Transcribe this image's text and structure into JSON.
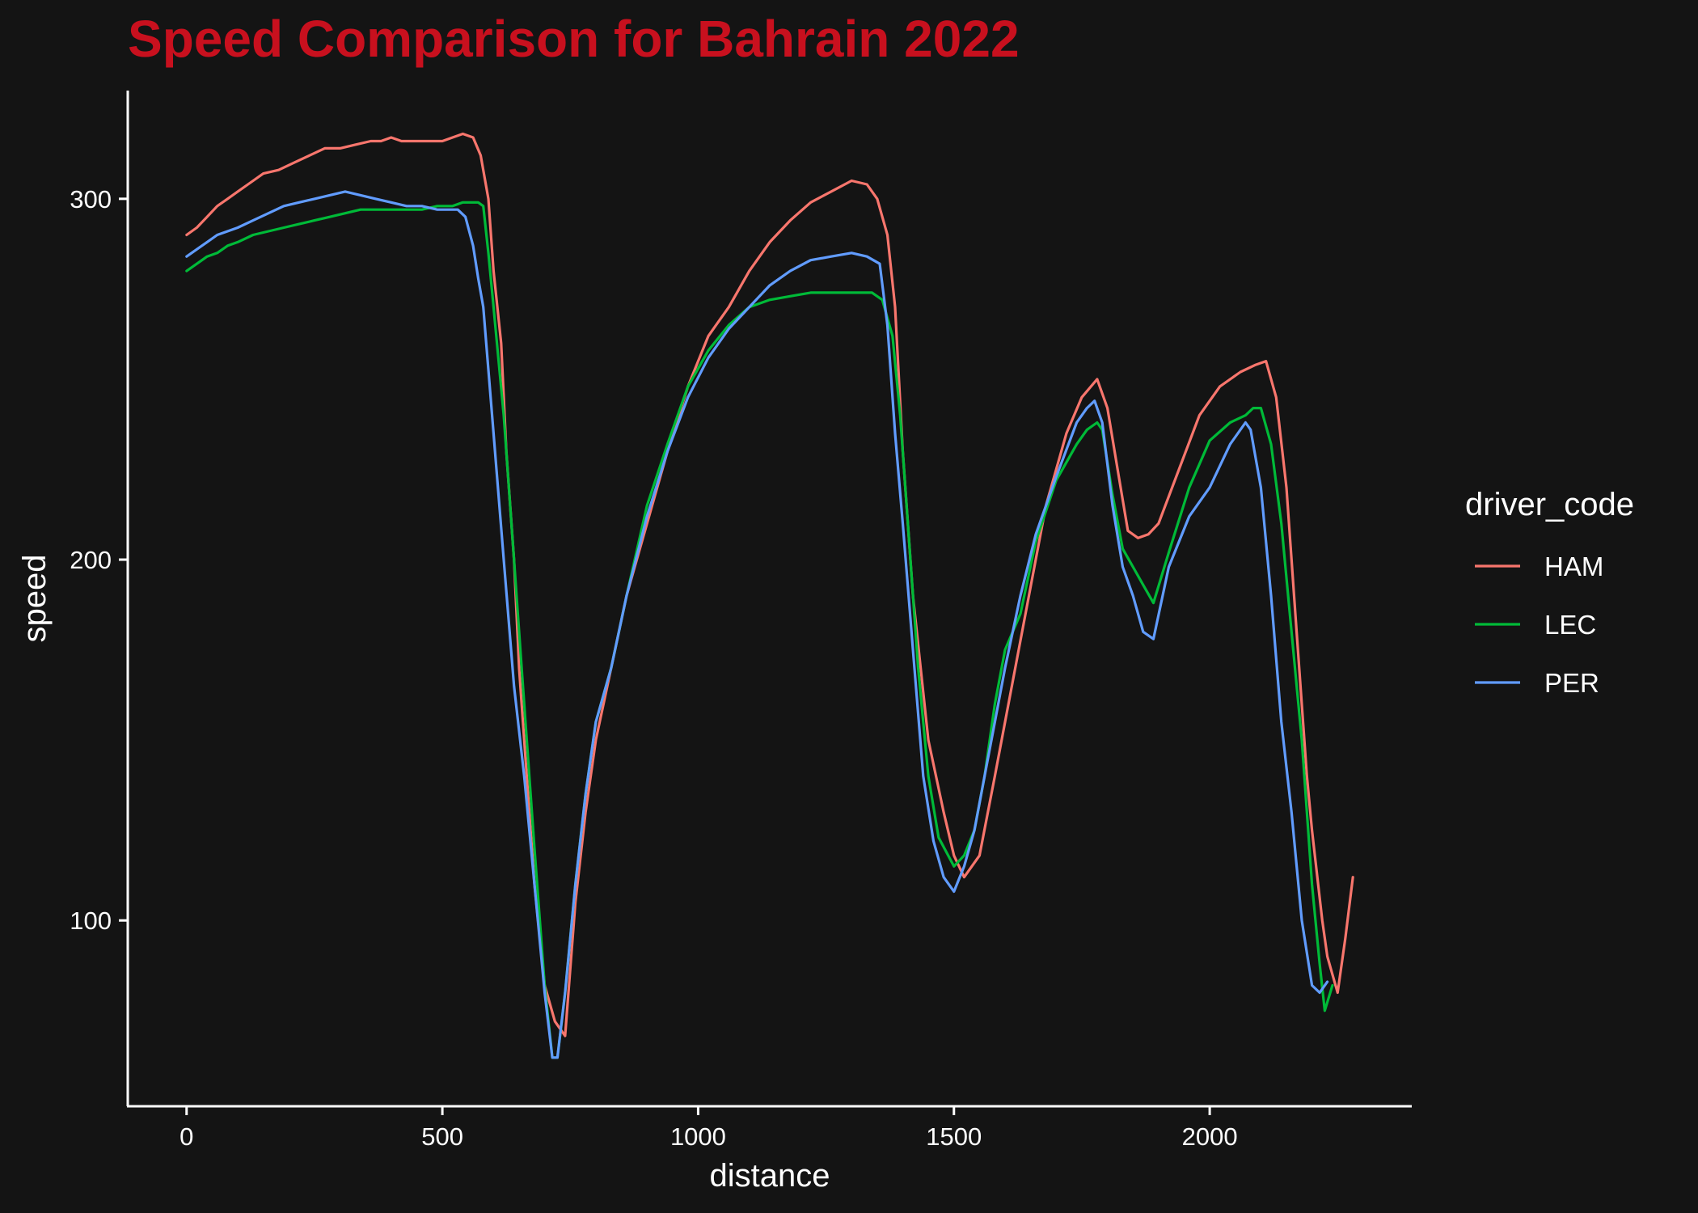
{
  "chart_data": {
    "type": "line",
    "title": "Speed Comparison for Bahrain 2022",
    "xlabel": "distance",
    "ylabel": "speed",
    "xlim": [
      -115,
      2395
    ],
    "ylim": [
      48.5,
      330
    ],
    "x_ticks": [
      0,
      500,
      1000,
      1500,
      2000
    ],
    "y_ticks": [
      100,
      200,
      300
    ],
    "grid": false,
    "legend_title": "driver_code",
    "legend_position": "right",
    "colors": {
      "background": "#141414",
      "title": "#C8101E",
      "axis": "#ffffff",
      "text": "#ffffff"
    },
    "series": [
      {
        "name": "HAM",
        "color": "#F8766D",
        "x": [
          0,
          20,
          40,
          60,
          80,
          100,
          120,
          150,
          180,
          210,
          240,
          270,
          300,
          330,
          360,
          380,
          400,
          420,
          450,
          480,
          500,
          520,
          540,
          560,
          575,
          590,
          600,
          615,
          625,
          640,
          650,
          660,
          680,
          700,
          720,
          740,
          760,
          780,
          800,
          830,
          860,
          900,
          940,
          980,
          1020,
          1060,
          1100,
          1140,
          1180,
          1220,
          1260,
          1300,
          1330,
          1350,
          1370,
          1385,
          1400,
          1420,
          1450,
          1480,
          1500,
          1520,
          1550,
          1580,
          1600,
          1640,
          1680,
          1720,
          1750,
          1780,
          1800,
          1820,
          1840,
          1860,
          1880,
          1900,
          1940,
          1980,
          2020,
          2060,
          2090,
          2110,
          2130,
          2150,
          2170,
          2190,
          2200,
          2220,
          2230,
          2240,
          2250,
          2265,
          2280
        ],
        "y": [
          290,
          292,
          295,
          298,
          300,
          302,
          304,
          307,
          308,
          310,
          312,
          314,
          314,
          315,
          316,
          316,
          317,
          316,
          316,
          316,
          316,
          317,
          318,
          317,
          312,
          300,
          280,
          260,
          230,
          200,
          170,
          150,
          110,
          82,
          72,
          68,
          105,
          130,
          150,
          170,
          190,
          210,
          230,
          248,
          262,
          270,
          280,
          288,
          294,
          299,
          302,
          305,
          304,
          300,
          290,
          270,
          230,
          190,
          150,
          130,
          118,
          112,
          118,
          140,
          155,
          185,
          215,
          235,
          245,
          250,
          242,
          225,
          208,
          206,
          207,
          210,
          225,
          240,
          248,
          252,
          254,
          255,
          245,
          220,
          180,
          140,
          125,
          100,
          90,
          85,
          80,
          95,
          112
        ]
      },
      {
        "name": "LEC",
        "color": "#00BA38",
        "x": [
          0,
          20,
          40,
          60,
          80,
          100,
          130,
          160,
          190,
          220,
          250,
          280,
          310,
          340,
          370,
          400,
          430,
          460,
          490,
          520,
          540,
          560,
          570,
          580,
          590,
          600,
          620,
          640,
          660,
          680,
          700,
          715,
          725,
          740,
          760,
          780,
          800,
          830,
          860,
          900,
          940,
          980,
          1020,
          1060,
          1100,
          1140,
          1180,
          1220,
          1260,
          1300,
          1340,
          1360,
          1380,
          1395,
          1410,
          1430,
          1450,
          1470,
          1500,
          1520,
          1540,
          1560,
          1580,
          1600,
          1630,
          1660,
          1700,
          1740,
          1760,
          1780,
          1790,
          1810,
          1830,
          1850,
          1870,
          1890,
          1920,
          1960,
          2000,
          2040,
          2070,
          2085,
          2100,
          2120,
          2140,
          2160,
          2180,
          2200,
          2215,
          2225,
          2240
        ],
        "y": [
          280,
          282,
          284,
          285,
          287,
          288,
          290,
          291,
          292,
          293,
          294,
          295,
          296,
          297,
          297,
          297,
          297,
          297,
          298,
          298,
          299,
          299,
          299,
          298,
          285,
          270,
          240,
          200,
          160,
          120,
          82,
          62,
          62,
          80,
          110,
          135,
          155,
          170,
          190,
          215,
          232,
          248,
          258,
          265,
          270,
          272,
          273,
          274,
          274,
          274,
          274,
          272,
          262,
          240,
          210,
          170,
          140,
          123,
          115,
          118,
          125,
          140,
          160,
          175,
          185,
          205,
          222,
          232,
          236,
          238,
          236,
          218,
          203,
          198,
          193,
          188,
          202,
          220,
          233,
          238,
          240,
          242,
          242,
          232,
          210,
          180,
          150,
          110,
          88,
          75,
          82
        ]
      },
      {
        "name": "PER",
        "color": "#619CFF",
        "x": [
          0,
          20,
          40,
          60,
          80,
          100,
          130,
          160,
          190,
          220,
          250,
          280,
          310,
          340,
          370,
          400,
          430,
          460,
          490,
          510,
          530,
          545,
          560,
          570,
          580,
          600,
          620,
          640,
          660,
          680,
          700,
          715,
          725,
          740,
          760,
          780,
          800,
          830,
          860,
          900,
          940,
          980,
          1020,
          1060,
          1100,
          1140,
          1180,
          1220,
          1260,
          1300,
          1330,
          1355,
          1370,
          1385,
          1400,
          1420,
          1440,
          1460,
          1480,
          1500,
          1520,
          1540,
          1560,
          1580,
          1600,
          1630,
          1660,
          1700,
          1740,
          1760,
          1775,
          1790,
          1810,
          1830,
          1850,
          1870,
          1890,
          1920,
          1960,
          2000,
          2040,
          2070,
          2080,
          2100,
          2120,
          2140,
          2160,
          2180,
          2200,
          2215,
          2230
        ],
        "y": [
          284,
          286,
          288,
          290,
          291,
          292,
          294,
          296,
          298,
          299,
          300,
          301,
          302,
          301,
          300,
          299,
          298,
          298,
          297,
          297,
          297,
          295,
          287,
          278,
          270,
          235,
          200,
          165,
          140,
          110,
          80,
          62,
          62,
          80,
          110,
          135,
          155,
          170,
          190,
          212,
          230,
          245,
          256,
          264,
          270,
          276,
          280,
          283,
          284,
          285,
          284,
          282,
          265,
          235,
          210,
          175,
          140,
          122,
          112,
          108,
          115,
          125,
          140,
          155,
          170,
          190,
          207,
          223,
          238,
          242,
          244,
          238,
          215,
          198,
          190,
          180,
          178,
          198,
          212,
          220,
          232,
          238,
          236,
          220,
          190,
          155,
          130,
          100,
          82,
          80,
          83
        ]
      }
    ]
  }
}
